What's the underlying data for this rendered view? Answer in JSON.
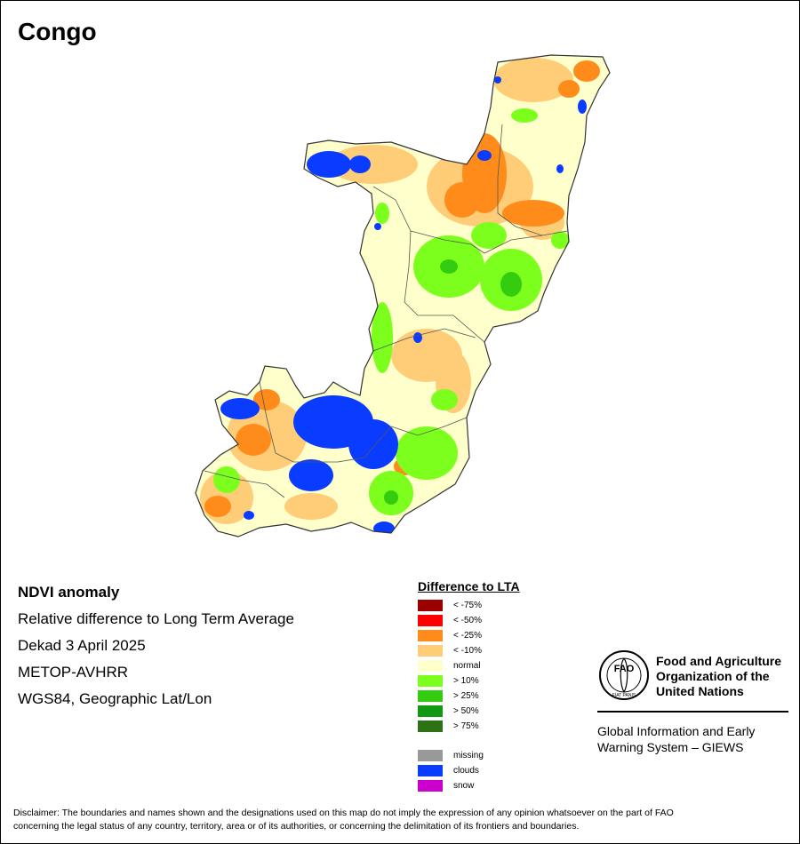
{
  "title": "Congo",
  "info": {
    "heading": "NDVI anomaly",
    "line1": "Relative difference to Long Term Average",
    "line2": "Dekad 3 April 2025",
    "line3": "METOP-AVHRR",
    "line4": "WGS84, Geographic Lat/Lon"
  },
  "legend": {
    "title": "Difference to LTA",
    "items": [
      {
        "label": "< -75%",
        "color": "#9b0000"
      },
      {
        "label": "< -50%",
        "color": "#ff0000"
      },
      {
        "label": "< -25%",
        "color": "#ff8c1a"
      },
      {
        "label": "< -10%",
        "color": "#ffcc77"
      },
      {
        "label": "normal",
        "color": "#ffffcc"
      },
      {
        "label": "> 10%",
        "color": "#7dff1e"
      },
      {
        "label": "> 25%",
        "color": "#33cc11"
      },
      {
        "label": "> 50%",
        "color": "#119911"
      },
      {
        "label": "> 75%",
        "color": "#2b7314"
      }
    ],
    "extra": [
      {
        "label": "missing",
        "color": "#999999"
      },
      {
        "label": "clouds",
        "color": "#0a3cff"
      },
      {
        "label": "snow",
        "color": "#cc00cc"
      }
    ]
  },
  "fao": {
    "name_line1": "Food and Agriculture",
    "name_line2": "Organization of the",
    "name_line3": "United Nations",
    "logo_letters": "FAO",
    "logo_motto": "FIAT PANIS",
    "giews_line1": "Global Information and Early",
    "giews_line2": "Warning System – GIEWS"
  },
  "disclaimer_line1": "Disclaimer: The boundaries and names shown and the designations used on this map do not imply the expression of any opinion whatsoever on the part of FAO",
  "disclaimer_line2": "concerning the legal status of any country, territory, area or of its authorities, or concerning the delimitation of its frontiers and boundaries."
}
